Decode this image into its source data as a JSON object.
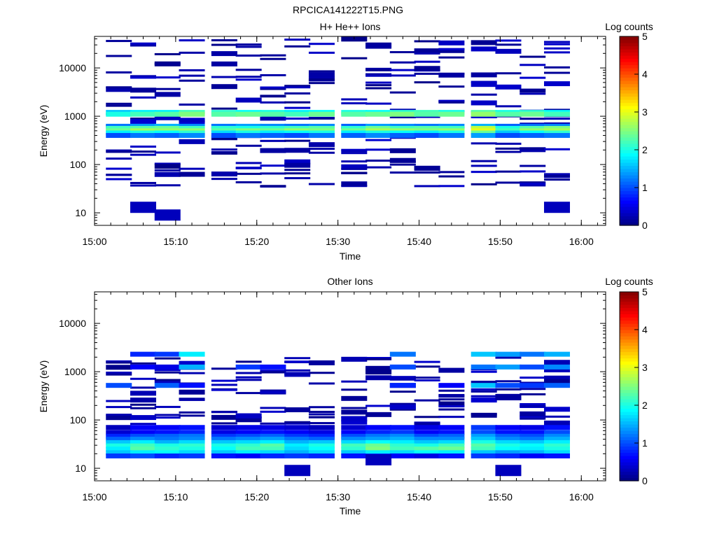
{
  "figure_title": "RPCICA141222T15.PNG",
  "colors": {
    "colormap": [
      "#00007f",
      "#0000ff",
      "#007fff",
      "#00ffff",
      "#7fff7f",
      "#ffff00",
      "#ff7f00",
      "#ff0000",
      "#7f0000"
    ],
    "axis": "#000000",
    "background": "#ffffff"
  },
  "chart_data": [
    {
      "type": "heatmap",
      "title": "H+ He++ Ions",
      "xlabel": "Time",
      "ylabel": "Energy (eV)",
      "y_scale": "log",
      "xlim": [
        "15:00",
        "16:03"
      ],
      "ylim": [
        5.5,
        45000
      ],
      "x_ticks": [
        "15:00",
        "15:10",
        "15:20",
        "15:30",
        "15:40",
        "15:50",
        "16:00"
      ],
      "y_ticks": [
        "10",
        "100",
        "1000",
        "10000"
      ],
      "colorbar": {
        "label": "Log counts",
        "min": 0,
        "max": 5,
        "ticks": [
          "0",
          "1",
          "2",
          "3",
          "4",
          "5"
        ]
      },
      "time_bins": [
        "15:03",
        "15:06",
        "15:09",
        "15:12",
        "15:16",
        "15:19",
        "15:22",
        "15:25",
        "15:28",
        "15:32",
        "15:35",
        "15:38",
        "15:41",
        "15:44",
        "15:48",
        "15:51",
        "15:54",
        "15:57"
      ],
      "energy_levels": [
        {
          "energy": 1200,
          "values": [
            1.6,
            1.8,
            1.8,
            2.2,
            2.1,
            1.9,
            2.0,
            1.8,
            1.9,
            2.0,
            1.9,
            2.1,
            2.2,
            2.0,
            2.3,
            2.0,
            2.1,
            1.9
          ]
        },
        {
          "energy": 1100,
          "values": [
            2.0,
            2.2,
            2.3,
            2.5,
            2.3,
            2.4,
            2.3,
            2.2,
            2.4,
            2.3,
            2.4,
            2.5,
            2.3,
            2.4,
            2.6,
            2.3,
            2.4,
            2.2
          ]
        },
        {
          "energy": 620,
          "values": [
            1.2,
            1.4,
            1.5,
            1.3,
            1.2,
            1.4,
            1.3,
            1.2,
            1.3,
            1.1,
            1.4,
            1.3,
            1.2,
            1.3,
            1.5,
            1.1,
            1.2,
            1.3
          ]
        },
        {
          "energy": 560,
          "values": [
            2.2,
            2.3,
            2.4,
            2.2,
            2.1,
            2.0,
            2.1,
            2.2,
            2.3,
            2.1,
            2.4,
            2.2,
            2.3,
            2.2,
            2.8,
            2.0,
            2.3,
            2.5
          ]
        },
        {
          "energy": 500,
          "values": [
            2.4,
            2.7,
            2.6,
            2.6,
            2.3,
            2.5,
            2.4,
            2.6,
            2.5,
            2.4,
            2.7,
            2.6,
            2.5,
            2.6,
            3.0,
            2.2,
            2.6,
            2.7
          ]
        },
        {
          "energy": 450,
          "values": [
            1.8,
            2.0,
            1.9,
            2.1,
            1.7,
            2.0,
            1.8,
            1.9,
            2.0,
            1.8,
            2.0,
            1.9,
            1.8,
            2.0,
            2.4,
            1.6,
            1.9,
            2.1
          ]
        },
        {
          "energy": 400,
          "values": [
            1.0,
            1.2,
            1.1,
            1.3,
            1.0,
            1.2,
            1.1,
            1.0,
            1.2,
            1.1,
            1.3,
            1.1,
            1.0,
            1.2,
            1.4,
            1.0,
            1.1,
            1.2
          ]
        },
        {
          "energy": 13,
          "values": [
            null,
            0.3,
            null,
            null,
            null,
            null,
            null,
            null,
            null,
            null,
            null,
            null,
            null,
            null,
            null,
            null,
            null,
            0.3
          ]
        },
        {
          "energy": 9,
          "values": [
            null,
            null,
            0.3,
            null,
            null,
            null,
            null,
            null,
            null,
            null,
            null,
            null,
            null,
            null,
            null,
            null,
            null,
            null
          ]
        }
      ],
      "sparse_low_count_bins": "many scattered single-count bins (log count < 0.5) from ~40 eV to ~40000 eV"
    },
    {
      "type": "heatmap",
      "title": "Other Ions",
      "xlabel": "Time",
      "ylabel": "Energy (eV)",
      "y_scale": "log",
      "xlim": [
        "15:00",
        "16:03"
      ],
      "ylim": [
        5.5,
        45000
      ],
      "x_ticks": [
        "15:00",
        "15:10",
        "15:20",
        "15:30",
        "15:40",
        "15:50",
        "16:00"
      ],
      "y_ticks": [
        "10",
        "100",
        "1000",
        "10000"
      ],
      "colorbar": {
        "label": "Log counts",
        "min": 0,
        "max": 5,
        "ticks": [
          "0",
          "1",
          "2",
          "3",
          "4",
          "5"
        ]
      },
      "time_bins": [
        "15:03",
        "15:06",
        "15:09",
        "15:12",
        "15:16",
        "15:19",
        "15:22",
        "15:25",
        "15:28",
        "15:32",
        "15:35",
        "15:38",
        "15:41",
        "15:44",
        "15:48",
        "15:51",
        "15:54",
        "15:57"
      ],
      "energy_levels": [
        {
          "energy": 2300,
          "values": [
            null,
            0.8,
            0.9,
            1.8,
            null,
            null,
            null,
            null,
            null,
            null,
            null,
            1.2,
            null,
            null,
            1.6,
            1.4,
            1.2,
            1.5
          ]
        },
        {
          "energy": 1250,
          "values": [
            null,
            0.6,
            0.5,
            1.5,
            null,
            0.9,
            0.7,
            null,
            null,
            null,
            null,
            1.0,
            null,
            null,
            1.2,
            1.4,
            1.0,
            1.3
          ]
        },
        {
          "energy": 520,
          "values": [
            1.0,
            null,
            1.1,
            0.7,
            null,
            null,
            null,
            null,
            null,
            null,
            null,
            0.8,
            null,
            0.6,
            1.6,
            1.0,
            0.9,
            1.1
          ]
        },
        {
          "energy": 70,
          "values": [
            0.3,
            0.6,
            0.6,
            0.7,
            0.4,
            0.5,
            0.5,
            0.4,
            0.3,
            0.4,
            0.6,
            0.7,
            0.5,
            0.6,
            0.9,
            0.6,
            0.5,
            0.7
          ]
        },
        {
          "energy": 55,
          "values": [
            0.4,
            0.6,
            0.7,
            0.8,
            0.5,
            0.6,
            0.7,
            0.6,
            0.5,
            0.6,
            0.8,
            0.9,
            0.6,
            0.7,
            1.0,
            0.7,
            0.7,
            1.0
          ]
        },
        {
          "energy": 46,
          "values": [
            0.8,
            1.0,
            1.1,
            1.2,
            0.9,
            1.0,
            1.1,
            0.9,
            0.8,
            1.0,
            1.2,
            1.3,
            1.0,
            1.1,
            1.4,
            1.1,
            1.0,
            1.3
          ]
        },
        {
          "energy": 40,
          "values": [
            1.1,
            1.3,
            1.2,
            1.3,
            1.2,
            1.3,
            1.4,
            1.2,
            1.1,
            1.3,
            1.4,
            1.5,
            1.3,
            1.3,
            1.6,
            1.3,
            1.2,
            1.5
          ]
        },
        {
          "energy": 34,
          "values": [
            1.6,
            1.8,
            1.5,
            1.7,
            1.6,
            1.7,
            1.8,
            1.5,
            1.6,
            1.7,
            1.9,
            1.8,
            1.6,
            1.7,
            2.0,
            1.7,
            1.6,
            1.8
          ]
        },
        {
          "energy": 29,
          "values": [
            2.0,
            2.2,
            2.0,
            2.1,
            2.0,
            2.1,
            2.3,
            1.8,
            2.0,
            2.2,
            2.4,
            2.1,
            2.0,
            2.2,
            2.3,
            2.0,
            1.9,
            2.1
          ]
        },
        {
          "energy": 25,
          "values": [
            1.8,
            2.3,
            2.1,
            2.0,
            1.9,
            2.2,
            2.2,
            1.7,
            1.9,
            2.1,
            2.5,
            2.2,
            2.3,
            2.4,
            2.2,
            1.9,
            1.8,
            2.0
          ]
        },
        {
          "energy": 21,
          "values": [
            1.6,
            1.8,
            1.9,
            1.7,
            1.6,
            1.8,
            1.7,
            1.5,
            1.7,
            1.6,
            1.8,
            1.7,
            1.9,
            1.8,
            1.6,
            1.4,
            1.5,
            1.7
          ]
        },
        {
          "energy": 18,
          "values": [
            0.9,
            1.0,
            0.8,
            0.9,
            0.7,
            0.6,
            0.8,
            0.9,
            0.8,
            0.7,
            0.9,
            0.6,
            0.5,
            0.7,
            0.9,
            0.8,
            0.6,
            0.7
          ]
        },
        {
          "energy": 15,
          "values": [
            null,
            null,
            null,
            null,
            null,
            null,
            null,
            null,
            null,
            null,
            0.3,
            null,
            null,
            null,
            null,
            null,
            null,
            null
          ]
        },
        {
          "energy": 9,
          "values": [
            null,
            null,
            null,
            null,
            null,
            null,
            null,
            0.3,
            null,
            null,
            null,
            null,
            null,
            null,
            null,
            0.3,
            null,
            null
          ]
        }
      ],
      "sparse_low_count_bins": "scattered single-count bins (log count < 0.5) from ~80 eV to ~2000 eV"
    }
  ]
}
